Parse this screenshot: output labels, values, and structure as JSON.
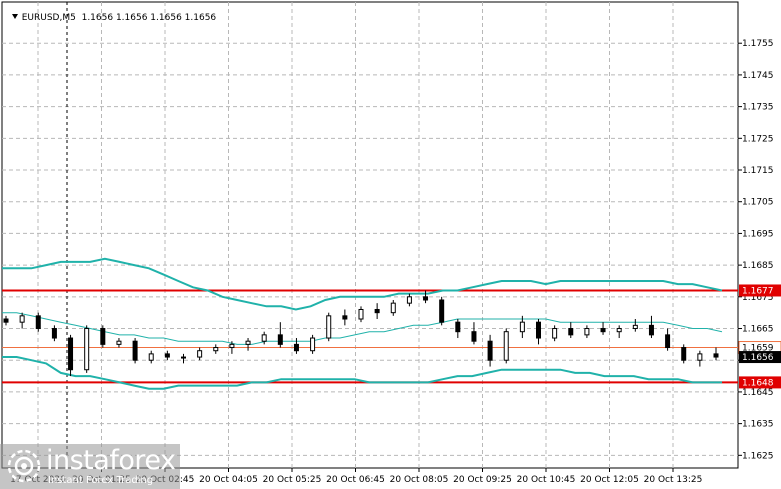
{
  "header": {
    "symbol": "EURUSD,M5",
    "ohlc": "1.1656 1.1656 1.1656 1.1656"
  },
  "chart_data": {
    "type": "line",
    "chart_kind": "candlestick",
    "grid": true,
    "ylim": [
      1.1621,
      1.1768
    ],
    "y_ticks": [
      "1.1755",
      "1.1745",
      "1.1735",
      "1.1725",
      "1.1715",
      "1.1705",
      "1.1695",
      "1.1685",
      "1.1675",
      "1.1665",
      "1.1655",
      "1.1645",
      "1.1635",
      "1.1625"
    ],
    "x_ticks": [
      "17 Oct 2020",
      "20 Oct 01:25",
      "20 Oct 02:45",
      "20 Oct 04:05",
      "20 Oct 05:25",
      "20 Oct 06:45",
      "20 Oct 08:05",
      "20 Oct 09:25",
      "20 Oct 10:45",
      "20 Oct 12:05",
      "20 Oct 13:25"
    ],
    "levels": [
      {
        "value": 1.1677,
        "label": "1.1677",
        "color": "#e00000"
      },
      {
        "value": 1.1648,
        "label": "1.1648",
        "color": "#e00000"
      }
    ],
    "current_price": {
      "value": 1.1656,
      "label": "1.1656",
      "color": "#000000"
    },
    "bid_marker": {
      "value": 1.1659,
      "label": "1.1659",
      "color": "#f07040"
    },
    "bollinger": {
      "color": "#20b2aa",
      "upper": [
        1.1684,
        1.1684,
        1.1684,
        1.1685,
        1.1686,
        1.1686,
        1.1686,
        1.1687,
        1.1686,
        1.1685,
        1.1684,
        1.1682,
        1.168,
        1.1678,
        1.1677,
        1.1675,
        1.1674,
        1.1673,
        1.1672,
        1.1672,
        1.1671,
        1.1672,
        1.1674,
        1.1675,
        1.1675,
        1.1675,
        1.1675,
        1.1676,
        1.1676,
        1.1676,
        1.1677,
        1.1677,
        1.1678,
        1.1679,
        1.168,
        1.168,
        1.168,
        1.1679,
        1.168,
        1.168,
        1.168,
        1.168,
        1.168,
        1.168,
        1.168,
        1.168,
        1.1679,
        1.1679,
        1.1678,
        1.1677
      ],
      "middle": [
        1.167,
        1.167,
        1.1669,
        1.1668,
        1.1667,
        1.1666,
        1.1665,
        1.1664,
        1.1663,
        1.1663,
        1.1662,
        1.1662,
        1.1661,
        1.1661,
        1.1661,
        1.1661,
        1.166,
        1.166,
        1.1661,
        1.1661,
        1.1661,
        1.1661,
        1.1662,
        1.1662,
        1.1663,
        1.1664,
        1.1664,
        1.1665,
        1.1666,
        1.1666,
        1.1667,
        1.1668,
        1.1668,
        1.1668,
        1.1668,
        1.1668,
        1.1668,
        1.1668,
        1.1667,
        1.1667,
        1.1667,
        1.1667,
        1.1667,
        1.1667,
        1.1667,
        1.1667,
        1.1666,
        1.1665,
        1.1665,
        1.1664
      ],
      "lower": [
        1.1656,
        1.1656,
        1.1655,
        1.1654,
        1.1651,
        1.165,
        1.165,
        1.1649,
        1.1648,
        1.1647,
        1.1646,
        1.1646,
        1.1647,
        1.1647,
        1.1647,
        1.1647,
        1.1647,
        1.1648,
        1.1648,
        1.1649,
        1.1649,
        1.1649,
        1.1649,
        1.1649,
        1.1649,
        1.1648,
        1.1648,
        1.1648,
        1.1648,
        1.1648,
        1.1649,
        1.165,
        1.165,
        1.1651,
        1.1652,
        1.1652,
        1.1652,
        1.1652,
        1.1652,
        1.1651,
        1.1651,
        1.165,
        1.165,
        1.165,
        1.1649,
        1.1649,
        1.1649,
        1.1648,
        1.1648,
        1.1648
      ]
    },
    "candles": [
      [
        1.1668,
        1.1669,
        1.1666,
        1.1667
      ],
      [
        1.1667,
        1.167,
        1.1665,
        1.1669
      ],
      [
        1.1669,
        1.167,
        1.1664,
        1.1665
      ],
      [
        1.1665,
        1.1666,
        1.1661,
        1.1662
      ],
      [
        1.1662,
        1.1663,
        1.165,
        1.1652
      ],
      [
        1.1652,
        1.1666,
        1.1651,
        1.1665
      ],
      [
        1.1665,
        1.1666,
        1.1659,
        1.166
      ],
      [
        1.166,
        1.1662,
        1.1659,
        1.1661
      ],
      [
        1.1661,
        1.1662,
        1.1654,
        1.1655
      ],
      [
        1.1655,
        1.1658,
        1.1654,
        1.1657
      ],
      [
        1.1657,
        1.1658,
        1.1655,
        1.1656
      ],
      [
        1.1656,
        1.1657,
        1.1654,
        1.1656
      ],
      [
        1.1656,
        1.1659,
        1.1655,
        1.1658
      ],
      [
        1.1658,
        1.166,
        1.1657,
        1.1659
      ],
      [
        1.1659,
        1.1661,
        1.1657,
        1.166
      ],
      [
        1.166,
        1.1662,
        1.1658,
        1.1661
      ],
      [
        1.1661,
        1.1664,
        1.166,
        1.1663
      ],
      [
        1.1663,
        1.1667,
        1.1659,
        1.166
      ],
      [
        1.166,
        1.1662,
        1.1657,
        1.1658
      ],
      [
        1.1658,
        1.1663,
        1.1657,
        1.1662
      ],
      [
        1.1662,
        1.167,
        1.1661,
        1.1669
      ],
      [
        1.1669,
        1.1671,
        1.1666,
        1.1668
      ],
      [
        1.1668,
        1.1672,
        1.1667,
        1.1671
      ],
      [
        1.1671,
        1.1673,
        1.1668,
        1.167
      ],
      [
        1.167,
        1.1674,
        1.1669,
        1.1673
      ],
      [
        1.1673,
        1.1676,
        1.1672,
        1.1675
      ],
      [
        1.1675,
        1.1677,
        1.1673,
        1.1674
      ],
      [
        1.1674,
        1.1675,
        1.1666,
        1.1667
      ],
      [
        1.1667,
        1.1668,
        1.1662,
        1.1664
      ],
      [
        1.1664,
        1.1667,
        1.166,
        1.1661
      ],
      [
        1.1661,
        1.1663,
        1.1653,
        1.1655
      ],
      [
        1.1655,
        1.1665,
        1.1654,
        1.1664
      ],
      [
        1.1664,
        1.1669,
        1.1662,
        1.1667
      ],
      [
        1.1667,
        1.1668,
        1.166,
        1.1662
      ],
      [
        1.1662,
        1.1666,
        1.1661,
        1.1665
      ],
      [
        1.1665,
        1.1667,
        1.1662,
        1.1663
      ],
      [
        1.1663,
        1.1666,
        1.1662,
        1.1665
      ],
      [
        1.1665,
        1.1667,
        1.1663,
        1.1664
      ],
      [
        1.1664,
        1.1666,
        1.1662,
        1.1665
      ],
      [
        1.1665,
        1.1668,
        1.1664,
        1.1666
      ],
      [
        1.1666,
        1.1669,
        1.1662,
        1.1663
      ],
      [
        1.1663,
        1.1665,
        1.1658,
        1.1659
      ],
      [
        1.1659,
        1.166,
        1.1654,
        1.1655
      ],
      [
        1.1655,
        1.1658,
        1.1653,
        1.1657
      ],
      [
        1.1657,
        1.1659,
        1.1655,
        1.1656
      ]
    ]
  },
  "watermark": {
    "brand": "instaforex",
    "tagline": "Instant Forex Trading"
  }
}
